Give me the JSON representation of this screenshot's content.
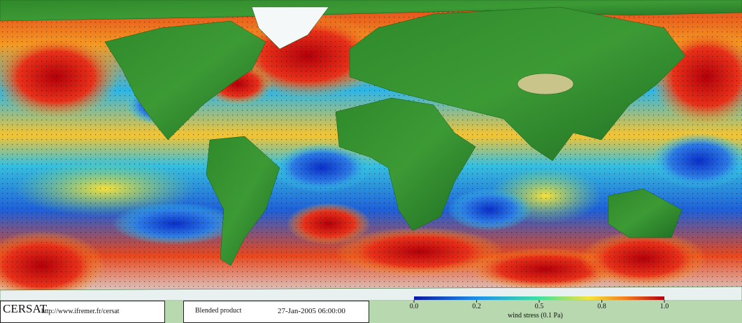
{
  "logo": "CERSAT",
  "url": "http://www.ifremer.fr/cersat",
  "product": "Blended product",
  "timestamp": "27-Jan-2005 06:00:00",
  "colorbar": {
    "ticks": [
      {
        "value": 0,
        "label": "0.0"
      },
      0.2,
      0.5,
      0.8,
      {
        "value": 1,
        "label": "1.0"
      }
    ],
    "label": "wind stress (0.1 Pa)"
  }
}
